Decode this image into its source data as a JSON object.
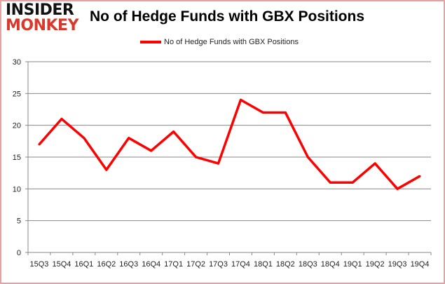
{
  "logo": {
    "line1": "INSIDER",
    "line2": "MONKEY"
  },
  "chart_data": {
    "type": "line",
    "title": "No of Hedge Funds with GBX Positions",
    "categories": [
      "15Q3",
      "15Q4",
      "16Q1",
      "16Q2",
      "16Q3",
      "16Q4",
      "17Q1",
      "17Q2",
      "17Q3",
      "17Q4",
      "18Q1",
      "18Q2",
      "18Q3",
      "18Q4",
      "19Q1",
      "19Q2",
      "19Q3",
      "19Q4"
    ],
    "series": [
      {
        "name": "No of Hedge Funds with GBX Positions",
        "values": [
          17,
          21,
          18,
          13,
          18,
          16,
          19,
          15,
          14,
          24,
          22,
          22,
          15,
          11,
          11,
          14,
          10,
          12
        ],
        "color": "#ff0000"
      }
    ],
    "ylim": [
      0,
      30
    ],
    "yticks": [
      0,
      5,
      10,
      15,
      20,
      25,
      30
    ],
    "grid": true,
    "legend_position": "top"
  }
}
